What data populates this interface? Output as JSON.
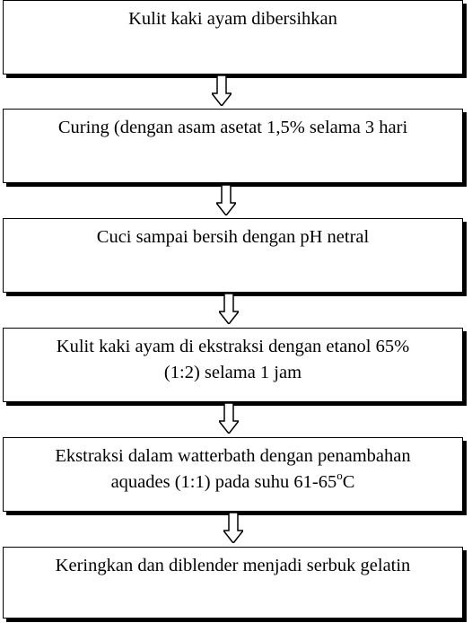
{
  "steps": [
    {
      "lines": [
        "Kulit kaki ayam dibersihkan"
      ]
    },
    {
      "lines": [
        "Curing (dengan asam asetat 1,5% selama 3 hari"
      ]
    },
    {
      "lines": [
        "Cuci sampai bersih dengan pH netral"
      ]
    },
    {
      "lines": [
        "Kulit kaki ayam di ekstraksi dengan etanol 65%",
        "(1:2) selama 1 jam"
      ]
    },
    {
      "lines": [
        "Ekstraksi dalam watterbath dengan penambahan",
        "aquades (1:1) pada suhu 61-65"
      ],
      "superscript": "o",
      "suffix": "C"
    },
    {
      "lines": [
        "Keringkan dan diblender menjadi serbuk gelatin"
      ]
    }
  ]
}
